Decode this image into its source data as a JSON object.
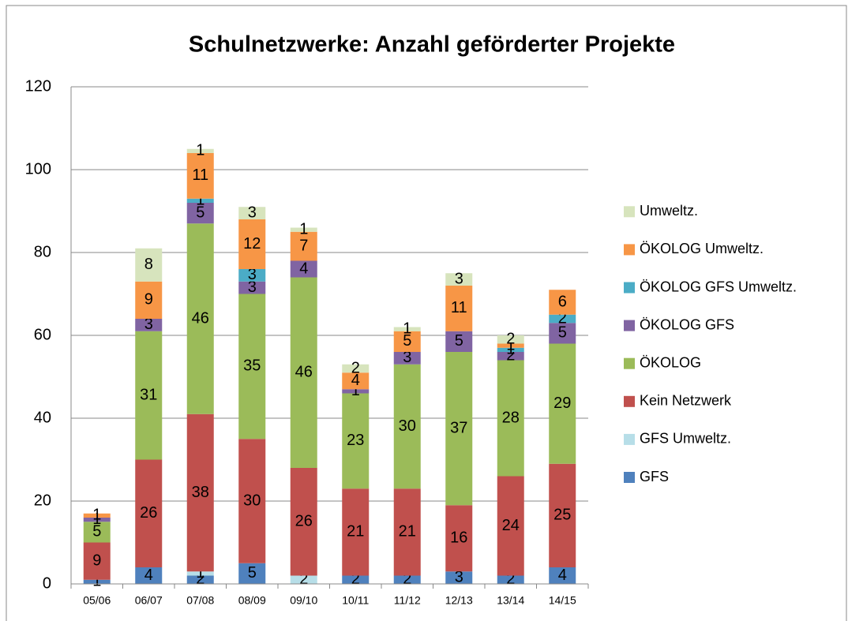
{
  "chart_data": {
    "type": "stacked_bar",
    "title": "Schulnetzwerke: Anzahl geförderter Projekte",
    "categories": [
      "05/06",
      "06/07",
      "07/08",
      "08/09",
      "09/10",
      "10/11",
      "11/12",
      "12/13",
      "13/14",
      "14/15"
    ],
    "series": [
      {
        "name": "GFS",
        "color": "#4f81bd",
        "values": [
          1,
          4,
          2,
          5,
          0,
          2,
          2,
          3,
          2,
          4
        ]
      },
      {
        "name": "GFS Umweltz.",
        "color": "#b7dee8",
        "values": [
          0,
          0,
          1,
          0,
          2,
          0,
          0,
          0,
          0,
          0
        ]
      },
      {
        "name": "Kein Netzwerk",
        "color": "#c0504d",
        "values": [
          9,
          26,
          38,
          30,
          26,
          21,
          21,
          16,
          24,
          25
        ]
      },
      {
        "name": "ÖKOLOG",
        "color": "#9bbb59",
        "values": [
          5,
          31,
          46,
          35,
          46,
          23,
          30,
          37,
          28,
          29
        ]
      },
      {
        "name": "ÖKOLOG GFS",
        "color": "#8064a2",
        "values": [
          1,
          3,
          5,
          3,
          4,
          1,
          3,
          5,
          2,
          5
        ]
      },
      {
        "name": "ÖKOLOG GFS Umweltz.",
        "color": "#4bacc6",
        "values": [
          0,
          0,
          1,
          3,
          0,
          0,
          0,
          0,
          1,
          2
        ]
      },
      {
        "name": "ÖKOLOG Umweltz.",
        "color": "#f79646",
        "values": [
          1,
          9,
          11,
          12,
          7,
          4,
          5,
          11,
          1,
          6
        ]
      },
      {
        "name": "Umweltz.",
        "color": "#d7e4bd",
        "values": [
          0,
          8,
          1,
          3,
          1,
          2,
          1,
          3,
          2,
          0
        ]
      }
    ],
    "ylim": [
      0,
      120
    ],
    "yticks": [
      0,
      20,
      40,
      60,
      80,
      100,
      120
    ],
    "grid": true,
    "legend": "right"
  }
}
